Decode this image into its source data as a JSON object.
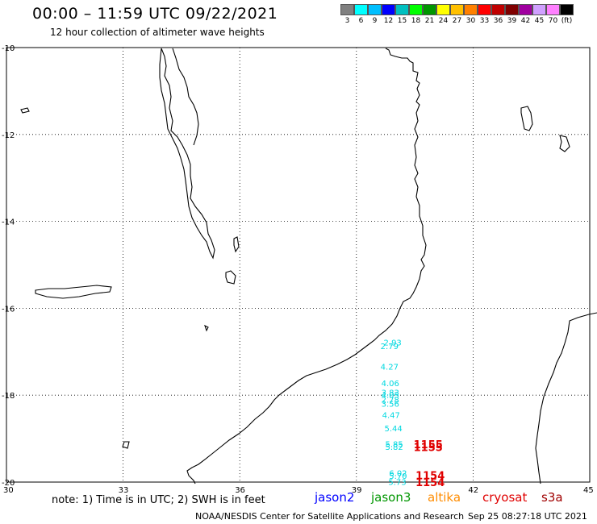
{
  "header": {
    "title": "00:00 – 11:59 UTC 09/22/2021",
    "subtitle": "12 hour collection of altimeter wave heights"
  },
  "legend": {
    "colors": [
      "#808080",
      "#00ffff",
      "#00bfff",
      "#0000ff",
      "#00c0c0",
      "#00ff00",
      "#009600",
      "#ffff00",
      "#ffc000",
      "#ff8000",
      "#ff0000",
      "#c00000",
      "#800000",
      "#a000a0",
      "#d0a0ff",
      "#ff80ff",
      "#000000"
    ],
    "labels": [
      "3",
      "6",
      "9",
      "12",
      "15",
      "18",
      "21",
      "24",
      "27",
      "30",
      "33",
      "36",
      "39",
      "42",
      "45",
      "70",
      "(ft)"
    ]
  },
  "map": {
    "lon_ticks": [
      "30",
      "33",
      "36",
      "39",
      "42",
      "45"
    ],
    "lat_ticks": [
      "-10",
      "-12",
      "-14",
      "-16",
      "-18",
      "-20"
    ],
    "lon_range": [
      30,
      45
    ],
    "lat_range": [
      -20,
      -10
    ],
    "grid": true,
    "track_color": "#00d8e0",
    "time_color": "#e00000",
    "wave_heights": [
      {
        "lon": 39.7,
        "lat": -16.78,
        "text": "2.93"
      },
      {
        "lon": 39.62,
        "lat": -16.86,
        "text": "2.79"
      },
      {
        "lon": 39.62,
        "lat": -17.34,
        "text": "4.27"
      },
      {
        "lon": 39.64,
        "lat": -17.72,
        "text": "4.06"
      },
      {
        "lon": 39.64,
        "lat": -17.93,
        "text": "3.83"
      },
      {
        "lon": 39.64,
        "lat": -17.99,
        "text": "4.05"
      },
      {
        "lon": 39.64,
        "lat": -18.1,
        "text": "2.78"
      },
      {
        "lon": 39.64,
        "lat": -18.19,
        "text": "3.56"
      },
      {
        "lon": 39.66,
        "lat": -18.45,
        "text": "4.47"
      },
      {
        "lon": 39.72,
        "lat": -18.76,
        "text": "5.44"
      },
      {
        "lon": 39.74,
        "lat": -19.12,
        "text": "5.85"
      },
      {
        "lon": 39.74,
        "lat": -19.18,
        "text": "5.82"
      },
      {
        "lon": 39.84,
        "lat": -19.79,
        "text": "6.02"
      },
      {
        "lon": 39.84,
        "lat": -19.85,
        "text": "5.70"
      },
      {
        "lon": 39.82,
        "lat": -19.99,
        "text": "5.73"
      }
    ],
    "pass_times": [
      {
        "lon": 40.47,
        "lat": -19.13,
        "text": "1155"
      },
      {
        "lon": 40.47,
        "lat": -19.19,
        "text": "1155"
      },
      {
        "lon": 40.52,
        "lat": -19.84,
        "text": "1154"
      },
      {
        "lon": 40.52,
        "lat": -20.0,
        "text": "1154"
      }
    ]
  },
  "footer": {
    "note": "note: 1) Time is in UTC; 2) SWH is in feet",
    "satellites": [
      {
        "name": "jason2",
        "color": "#0000ff"
      },
      {
        "name": "jason3",
        "color": "#009600"
      },
      {
        "name": "altika",
        "color": "#ff8c00"
      },
      {
        "name": "cryosat",
        "color": "#e00000"
      },
      {
        "name": "s3a",
        "color": "#a00000"
      }
    ],
    "credit": "NOAA/NESDIS Center for Satellite Applications and Research",
    "timestamp": "Sep 25 08:27:18 UTC 2021"
  }
}
